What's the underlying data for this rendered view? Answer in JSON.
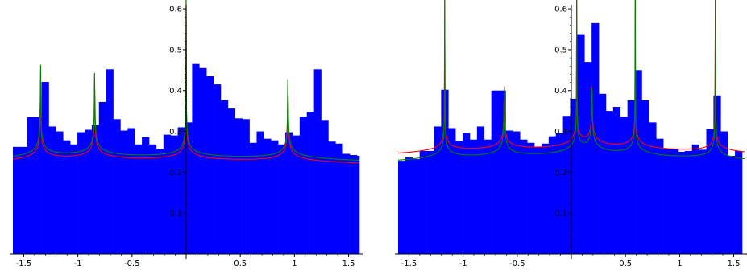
{
  "chart_data": [
    {
      "type": "bar",
      "title": "",
      "xlabel": "",
      "ylabel": "",
      "xlim": [
        -1.6,
        1.6
      ],
      "ylim": [
        0,
        0.61
      ],
      "x_ticks": [
        -1.5,
        -1,
        -0.5,
        0.5,
        1,
        1.5
      ],
      "x_tick_labels": [
        "-1.5",
        "-1",
        "-0.5",
        "0.5",
        "1",
        "1.5"
      ],
      "y_ticks": [
        0.1,
        0.2,
        0.3,
        0.4,
        0.5,
        0.6
      ],
      "y_tick_labels": [
        "0.1",
        "0.2",
        "0.3",
        "0.4",
        "0.5",
        "0.6"
      ],
      "grid": false,
      "bar_color": "#0000ff",
      "bin_start": -1.6,
      "bin_width": 0.0662,
      "values": [
        0.262,
        0.262,
        0.335,
        0.335,
        0.421,
        0.312,
        0.3,
        0.278,
        0.268,
        0.298,
        0.304,
        0.316,
        0.372,
        0.452,
        0.33,
        0.302,
        0.308,
        0.268,
        0.286,
        0.268,
        0.256,
        0.292,
        0.29,
        0.31,
        0.322,
        0.465,
        0.455,
        0.435,
        0.415,
        0.376,
        0.356,
        0.332,
        0.33,
        0.272,
        0.3,
        0.282,
        0.278,
        0.268,
        0.298,
        0.29,
        0.336,
        0.348,
        0.452,
        0.328,
        0.275,
        0.27,
        0.245,
        0.242,
        0.24,
        0.228,
        0.248
      ],
      "series": [
        {
          "color": "#ff0000",
          "base": 0.2,
          "amplitude": 0.007,
          "singularities": [
            -1.345,
            -0.845,
            0.0,
            0.94
          ]
        },
        {
          "color": "#008000",
          "base": 0.205,
          "amplitude": 0.0075,
          "singularities": [
            -1.345,
            -0.845,
            0.0,
            0.94
          ]
        }
      ]
    },
    {
      "type": "bar",
      "title": "",
      "xlabel": "",
      "ylabel": "",
      "xlim": [
        -1.6,
        1.6
      ],
      "ylim": [
        0,
        0.61
      ],
      "x_ticks": [
        -1.5,
        -1,
        -0.5,
        0.5,
        1,
        1.5
      ],
      "x_tick_labels": [
        "-1.5",
        "-1",
        "-0.5",
        "0.5",
        "1",
        "1.5"
      ],
      "y_ticks": [
        0.1,
        0.2,
        0.3,
        0.4,
        0.5,
        0.6
      ],
      "y_tick_labels": [
        "0.1",
        "0.2",
        "0.3",
        "0.4",
        "0.5",
        "0.6"
      ],
      "grid": false,
      "bar_color": "#0000ff",
      "bin_start": -1.6,
      "bin_width": 0.0662,
      "values": [
        0.228,
        0.236,
        0.232,
        0.252,
        0.252,
        0.312,
        0.402,
        0.308,
        0.276,
        0.296,
        0.28,
        0.312,
        0.28,
        0.4,
        0.4,
        0.302,
        0.3,
        0.28,
        0.272,
        0.262,
        0.27,
        0.288,
        0.296,
        0.338,
        0.38,
        0.538,
        0.47,
        0.565,
        0.392,
        0.35,
        0.36,
        0.336,
        0.376,
        0.45,
        0.376,
        0.322,
        0.282,
        0.256,
        0.256,
        0.25,
        0.252,
        0.268,
        0.255,
        0.306,
        0.388,
        0.3,
        0.24,
        0.252
      ],
      "series": [
        {
          "color": "#ff0000",
          "base": 0.215,
          "amplitude": 0.006,
          "singularities": [
            -1.17,
            -0.62,
            0.05,
            0.19,
            0.59,
            1.33
          ]
        },
        {
          "color": "#008000",
          "base": 0.195,
          "amplitude": 0.0065,
          "singularities": [
            -1.17,
            -0.62,
            0.05,
            0.19,
            0.59,
            1.33
          ]
        }
      ]
    }
  ]
}
